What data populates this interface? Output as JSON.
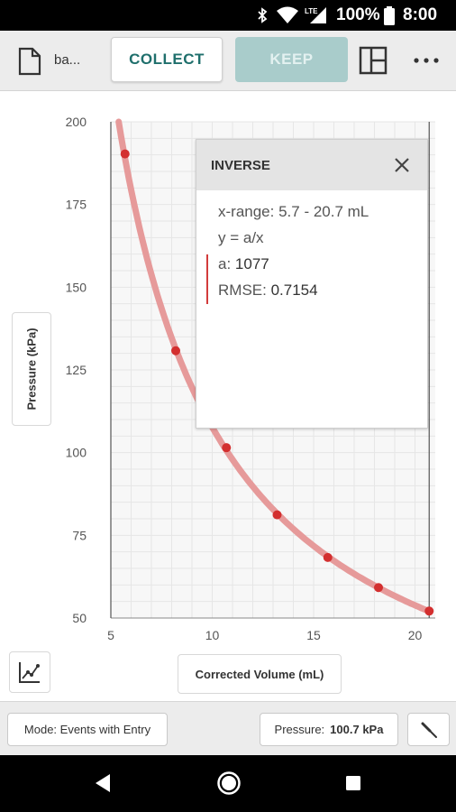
{
  "status_bar": {
    "battery": "100%",
    "time": "8:00",
    "network": "LTE"
  },
  "toolbar": {
    "file_name": "ba...",
    "collect_label": "COLLECT",
    "keep_label": "KEEP"
  },
  "chart_data": {
    "type": "scatter",
    "xlabel": "Corrected Volume (mL)",
    "ylabel": "Pressure (kPa)",
    "xlim": [
      5,
      20.7
    ],
    "ylim": [
      50,
      200
    ],
    "x_ticks": [
      5,
      10,
      15,
      20
    ],
    "y_ticks": [
      50,
      75,
      100,
      125,
      150,
      175,
      200
    ],
    "grid": true,
    "series": [
      {
        "x": [
          5.7,
          8.2,
          10.7,
          13.2,
          15.7,
          18.2,
          20.7
        ],
        "y": [
          190.3,
          130.8,
          101.5,
          81.2,
          68.3,
          59.2,
          52.1
        ]
      }
    ],
    "fit": {
      "type": "inverse",
      "a": 1077,
      "x_range": [
        5.7,
        20.7
      ]
    },
    "colors": {
      "points": "#d32f2f",
      "fit_curve": "#e69a9a",
      "grid": "#e6e6e6"
    }
  },
  "fit_panel": {
    "title": "INVERSE",
    "x_range": "x-range: 5.7 - 20.7 mL",
    "equation": "y = a/x",
    "param_label": "a: ",
    "param_value": "1077",
    "rmse_label": "RMSE: ",
    "rmse_value": "0.7154"
  },
  "bottom_bar": {
    "mode_label": "Mode: Events with Entry",
    "sensor_label": "Pressure:",
    "sensor_value": "100.7 kPa"
  },
  "icons": [
    "bluetooth-icon",
    "wifi-icon",
    "signal-icon",
    "battery-icon",
    "document-icon",
    "layout-icon",
    "more-icon",
    "close-icon",
    "graph-tools-icon",
    "probe-icon",
    "back-icon",
    "home-icon",
    "recents-icon"
  ]
}
